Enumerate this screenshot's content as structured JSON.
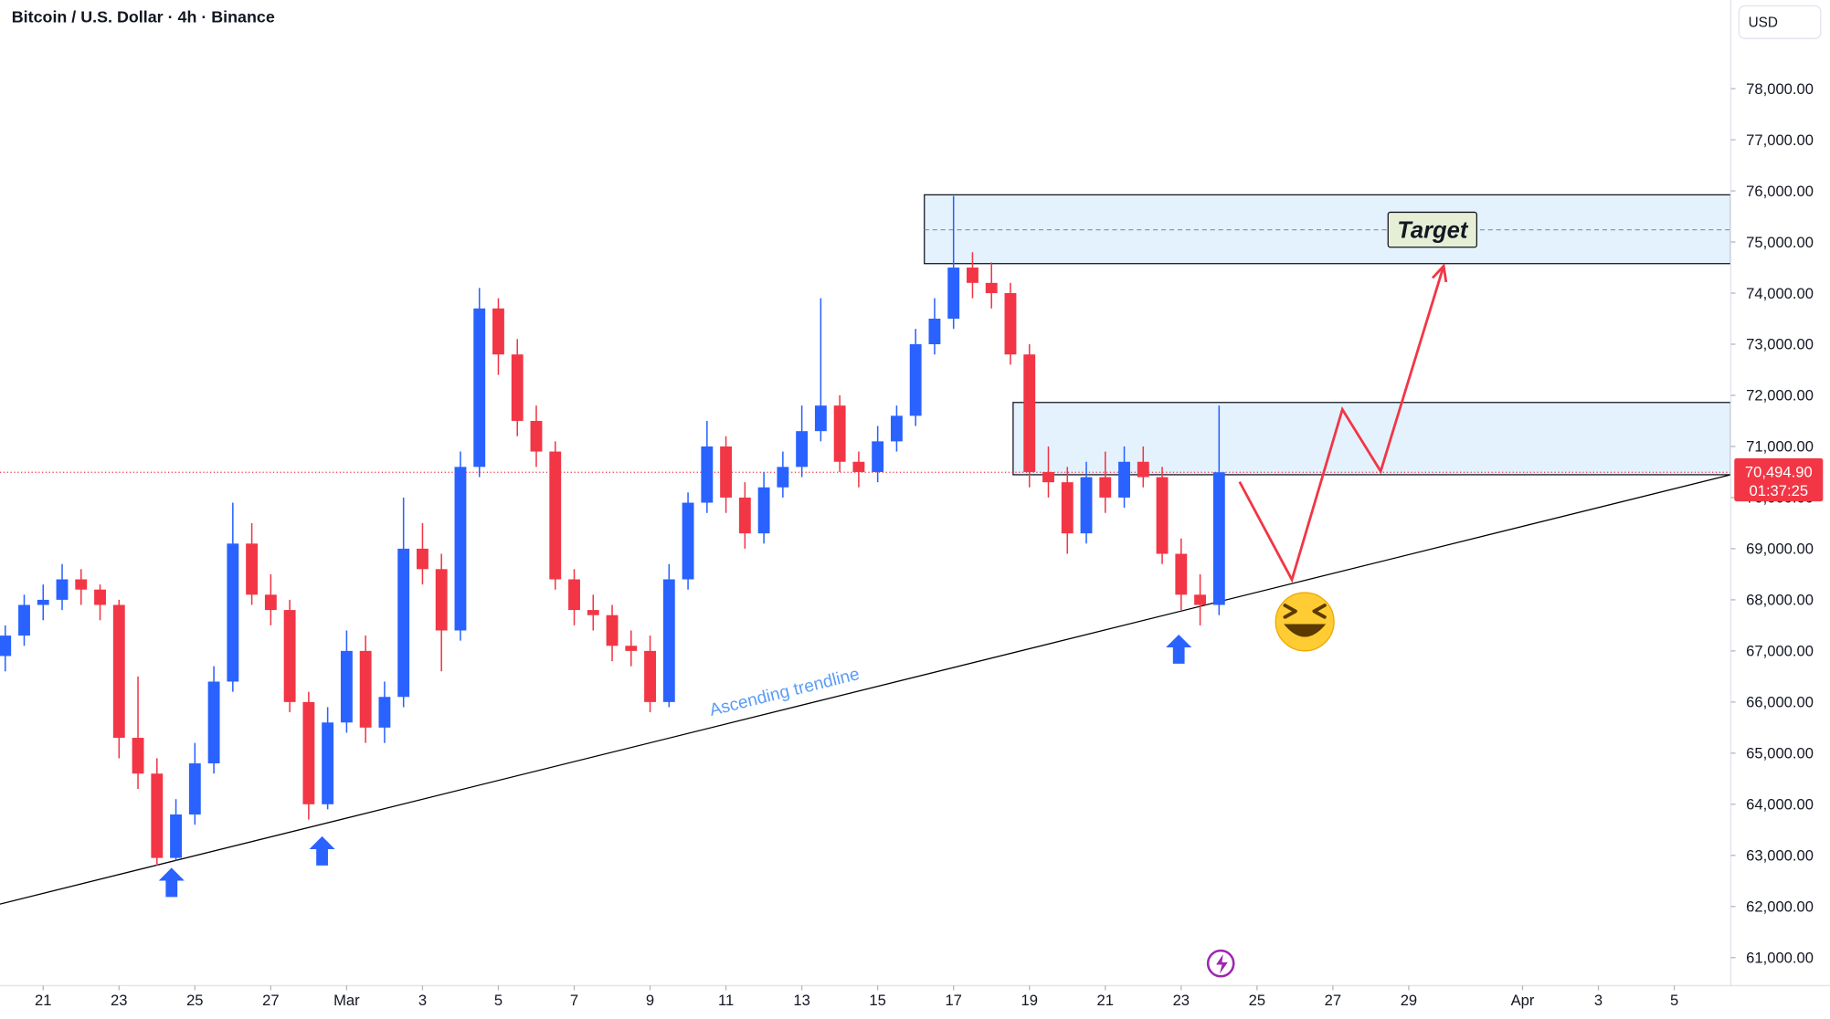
{
  "chart_data": {
    "type": "candlestick",
    "title": "Bitcoin / U.S. Dollar · 4h · Binance",
    "currency": "USD",
    "up_color": "#2962ff",
    "down_color": "#f23645",
    "xlim": [
      19.862,
      65.49
    ],
    "ylim": [
      60452,
      79734
    ],
    "grid": false,
    "xticks": [
      21,
      23,
      25,
      27,
      {
        "value": 29,
        "label": "Mar"
      },
      {
        "value": 31,
        "label": "3"
      },
      {
        "value": 33,
        "label": "5"
      },
      {
        "value": 35,
        "label": "7"
      },
      {
        "value": 37,
        "label": "9"
      },
      {
        "value": 39,
        "label": "11"
      },
      {
        "value": 41,
        "label": "13"
      },
      {
        "value": 43,
        "label": "15"
      },
      {
        "value": 45,
        "label": "17"
      },
      {
        "value": 47,
        "label": "19"
      },
      {
        "value": 49,
        "label": "21"
      },
      {
        "value": 51,
        "label": "23"
      },
      {
        "value": 53,
        "label": "25"
      },
      {
        "value": 55,
        "label": "27"
      },
      {
        "value": 57,
        "label": "29"
      },
      {
        "value": 60,
        "label": "Apr"
      },
      {
        "value": 62,
        "label": "3"
      },
      {
        "value": 64,
        "label": "5"
      }
    ],
    "yticks": [
      {
        "value": 61000,
        "label": "61,000.00"
      },
      {
        "value": 62000,
        "label": "62,000.00"
      },
      {
        "value": 63000,
        "label": "63,000.00"
      },
      {
        "value": 64000,
        "label": "64,000.00"
      },
      {
        "value": 65000,
        "label": "65,000.00"
      },
      {
        "value": 66000,
        "label": "66,000.00"
      },
      {
        "value": 67000,
        "label": "67,000.00"
      },
      {
        "value": 68000,
        "label": "68,000.00"
      },
      {
        "value": 69000,
        "label": "69,000.00"
      },
      {
        "value": 70000,
        "label": "70,000.00"
      },
      {
        "value": 71000,
        "label": "71,000.00"
      },
      {
        "value": 72000,
        "label": "72,000.00"
      },
      {
        "value": 73000,
        "label": "73,000.00"
      },
      {
        "value": 74000,
        "label": "74,000.00"
      },
      {
        "value": 75000,
        "label": "75,000.00"
      },
      {
        "value": 76000,
        "label": "76,000.00"
      },
      {
        "value": 77000,
        "label": "77,000.00"
      },
      {
        "value": 78000,
        "label": "78,000.00"
      }
    ],
    "x": [
      20,
      20.5,
      21,
      21.5,
      22,
      22.5,
      23,
      23.5,
      24,
      24.5,
      25,
      25.5,
      26,
      26.5,
      27,
      27.5,
      28,
      28.5,
      29,
      29.5,
      30,
      30.5,
      31,
      31.5,
      32,
      32.5,
      33,
      33.5,
      34,
      34.5,
      35,
      35.5,
      36,
      36.5,
      37,
      37.5,
      38,
      38.5,
      39,
      39.5,
      40,
      40.5,
      41,
      41.5,
      42,
      42.5,
      43,
      43.5,
      44,
      44.5,
      45,
      45.5,
      46,
      46.5,
      47,
      47.5,
      48,
      48.5,
      49,
      49.5,
      50,
      50.5,
      51,
      51.5,
      52
    ],
    "open": [
      66900,
      67300,
      67900,
      68000,
      68400,
      68200,
      67900,
      65300,
      64600,
      62950,
      63800,
      64800,
      66400,
      69100,
      68100,
      67800,
      66000,
      64000,
      65600,
      67000,
      65500,
      66100,
      69000,
      68600,
      67400,
      70600,
      73700,
      72800,
      71500,
      70900,
      68400,
      67800,
      67700,
      67100,
      67000,
      66000,
      68400,
      69900,
      71000,
      70000,
      69300,
      70200,
      70600,
      71300,
      71800,
      70700,
      70500,
      71100,
      71600,
      73000,
      73500,
      74500,
      74200,
      74000,
      72800,
      70500,
      70300,
      69300,
      70400,
      70000,
      70700,
      70400,
      68900,
      68100,
      67900
    ],
    "high": [
      67500,
      68100,
      68300,
      68700,
      68600,
      68300,
      68000,
      66500,
      64900,
      64100,
      65200,
      66700,
      69900,
      69500,
      68500,
      68000,
      66200,
      65900,
      67400,
      67300,
      66400,
      70000,
      69500,
      68900,
      70900,
      74100,
      73900,
      73100,
      71800,
      71100,
      68600,
      68100,
      67900,
      67400,
      67300,
      68700,
      70100,
      71500,
      71200,
      70300,
      70500,
      70900,
      71800,
      73900,
      72000,
      70900,
      71400,
      71800,
      73300,
      73900,
      75900,
      74800,
      74600,
      74200,
      73000,
      71000,
      70600,
      70700,
      70900,
      71000,
      71000,
      70600,
      69200,
      68500,
      71800
    ],
    "low": [
      66600,
      67100,
      67600,
      67800,
      67900,
      67600,
      64900,
      64300,
      62800,
      62900,
      63600,
      64600,
      66200,
      67900,
      67500,
      65800,
      63700,
      63900,
      65400,
      65200,
      65200,
      65900,
      68300,
      66600,
      67200,
      70400,
      72400,
      71200,
      70600,
      68200,
      67500,
      67400,
      66800,
      66700,
      65800,
      65900,
      68200,
      69700,
      69700,
      69000,
      69100,
      70000,
      70400,
      71100,
      70500,
      70200,
      70300,
      70900,
      71400,
      72800,
      73300,
      73900,
      73700,
      72600,
      70200,
      70000,
      68900,
      69100,
      69700,
      69800,
      70200,
      68700,
      67800,
      67500,
      67700
    ],
    "close": [
      67300,
      67900,
      68000,
      68400,
      68200,
      67900,
      65300,
      64600,
      62950,
      63800,
      64800,
      66400,
      69100,
      68100,
      67800,
      66000,
      64000,
      65600,
      67000,
      65500,
      66100,
      69000,
      68600,
      67400,
      70600,
      73700,
      72800,
      71500,
      70900,
      68400,
      67800,
      67700,
      67100,
      67000,
      66000,
      68400,
      69900,
      71000,
      70000,
      69300,
      70200,
      70600,
      71300,
      71800,
      70700,
      70500,
      71100,
      71600,
      73000,
      73500,
      74500,
      74200,
      74000,
      72800,
      70500,
      70300,
      69300,
      70400,
      70000,
      70700,
      70400,
      68900,
      68100,
      67900,
      70494.9
    ],
    "last_price": {
      "value": 70494.9,
      "label": "70,494.90"
    },
    "countdown": "01:37:25",
    "trendline": {
      "label": "Ascending trendline",
      "x": [
        19.862,
        65.49
      ],
      "y": [
        62048,
        70447
      ],
      "color": "#000000",
      "label_color": "#5b9cf6"
    },
    "zones": [
      {
        "x_start": 44.23,
        "low": 74577,
        "high": 75923,
        "mid": 75240,
        "label": "Target"
      },
      {
        "x_start": 46.57,
        "low": 70447,
        "high": 71861
      }
    ],
    "projection": {
      "x": [
        52.54,
        53.92,
        55.25,
        56.26,
        57.92
      ],
      "y": [
        70309,
        68393,
        71724,
        70515,
        74531
      ],
      "color": "#f23645"
    }
  }
}
